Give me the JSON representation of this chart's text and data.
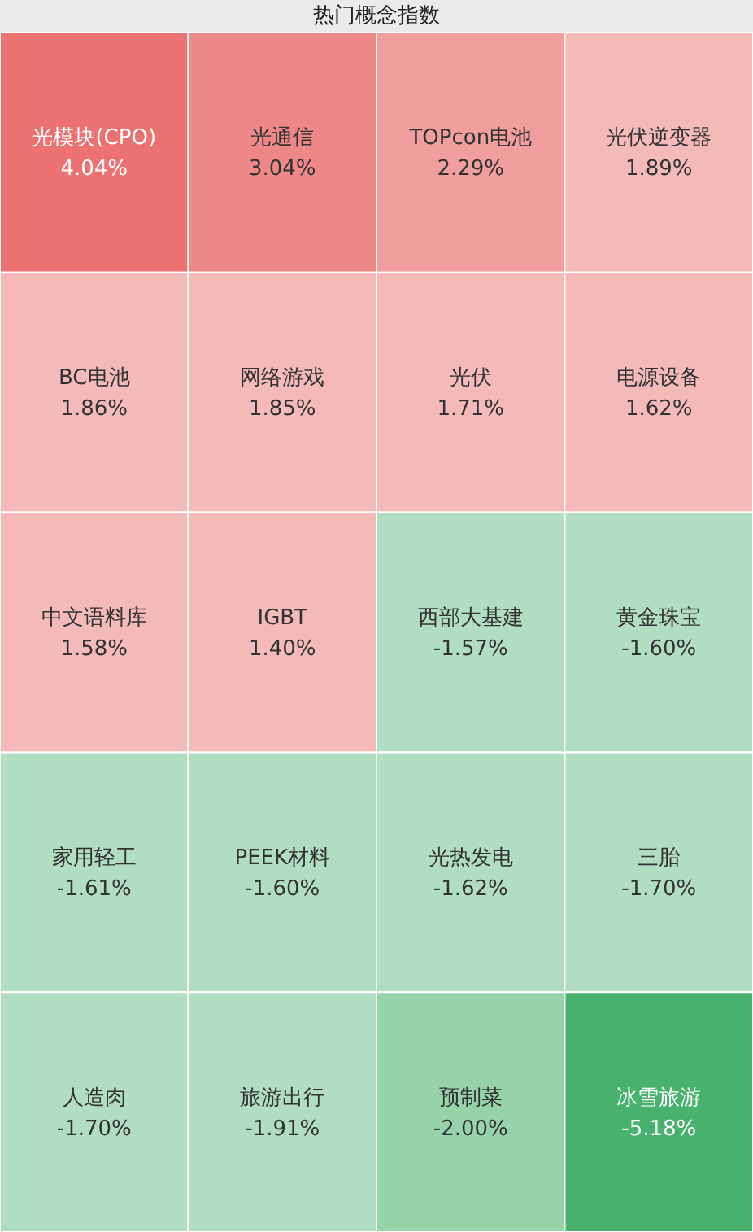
{
  "chart_data": {
    "type": "other",
    "title": "热门概念指数",
    "categories": [
      "光模块(CPO)",
      "光通信",
      "TOPcon电池",
      "光伏逆变器",
      "BC电池",
      "网络游戏",
      "光伏",
      "电源设备",
      "中文语料库",
      "IGBT",
      "西部大基建",
      "黄金珠宝",
      "家用轻工",
      "PEEK材料",
      "光热发电",
      "三胎",
      "人造肉",
      "旅游出行",
      "预制菜",
      "冰雪旅游"
    ],
    "values": [
      4.04,
      3.04,
      2.29,
      1.89,
      1.86,
      1.85,
      1.71,
      1.62,
      1.58,
      1.4,
      -1.57,
      -1.6,
      -1.61,
      -1.6,
      -1.62,
      -1.7,
      -1.7,
      -1.91,
      -2.0,
      -5.18
    ],
    "value_labels": [
      "4.04%",
      "3.04%",
      "2.29%",
      "1.89%",
      "1.86%",
      "1.85%",
      "1.71%",
      "1.62%",
      "1.58%",
      "1.40%",
      "-1.57%",
      "-1.60%",
      "-1.61%",
      "-1.60%",
      "-1.62%",
      "-1.70%",
      "-1.70%",
      "-1.91%",
      "-2.00%",
      "-5.18%"
    ],
    "colors": [
      "#ec7171",
      "#ee8787",
      "#f09e9e",
      "#f4b9b9",
      "#f4b9b9",
      "#f4b9b9",
      "#f4b9b9",
      "#f4b9b9",
      "#f4b9b9",
      "#f4b9b9",
      "#b1ddc3",
      "#b1ddc3",
      "#b1ddc3",
      "#b1ddc3",
      "#b1ddc3",
      "#b1ddc3",
      "#b1ddc3",
      "#b1ddc3",
      "#96d2aa",
      "#48b16d"
    ]
  }
}
